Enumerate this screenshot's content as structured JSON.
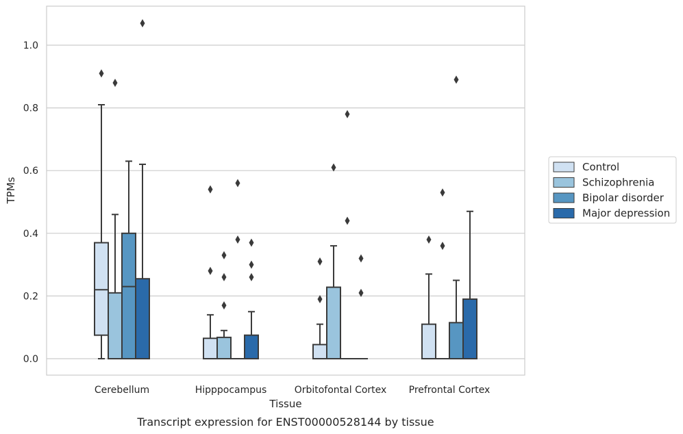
{
  "chart_data": {
    "type": "box",
    "xlabel": "Tissue",
    "ylabel": "TPMs",
    "caption": "Transcript expression for ENST00000528144 by tissue",
    "ylim": [
      -0.05,
      1.13
    ],
    "yticks": [
      0.0,
      0.2,
      0.4,
      0.6,
      0.8,
      1.0
    ],
    "ytick_labels": [
      "0.0",
      "0.2",
      "0.4",
      "0.6",
      "0.8",
      "1.0"
    ],
    "categories": [
      "Cerebellum",
      "Hipppocampus",
      "Orbitofontal Cortex",
      "Prefrontal Cortex"
    ],
    "grid": "horizontal",
    "legend_position": "right",
    "series": [
      {
        "name": "Control",
        "color": "#d0e1f2",
        "boxes": [
          {
            "q1": 0.075,
            "median": 0.22,
            "q3": 0.37,
            "whisker_low": 0.0,
            "whisker_high": 0.81,
            "outliers": [
              0.91
            ]
          },
          {
            "q1": 0.0,
            "median": 0.0,
            "q3": 0.065,
            "whisker_low": 0.0,
            "whisker_high": 0.14,
            "outliers": [
              0.28,
              0.54
            ]
          },
          {
            "q1": 0.0,
            "median": 0.0,
            "q3": 0.045,
            "whisker_low": 0.0,
            "whisker_high": 0.11,
            "outliers": [
              0.19,
              0.31
            ]
          },
          {
            "q1": 0.0,
            "median": 0.0,
            "q3": 0.11,
            "whisker_low": 0.0,
            "whisker_high": 0.27,
            "outliers": [
              0.38
            ]
          }
        ]
      },
      {
        "name": "Schizophrenia",
        "color": "#9ac4dd",
        "boxes": [
          {
            "q1": 0.0,
            "median": 0.0,
            "q3": 0.21,
            "whisker_low": 0.0,
            "whisker_high": 0.46,
            "outliers": [
              0.88
            ]
          },
          {
            "q1": 0.0,
            "median": 0.0,
            "q3": 0.068,
            "whisker_low": 0.0,
            "whisker_high": 0.09,
            "outliers": [
              0.17,
              0.26,
              0.33
            ]
          },
          {
            "q1": 0.0,
            "median": 0.0,
            "q3": 0.228,
            "whisker_low": 0.0,
            "whisker_high": 0.36,
            "outliers": [
              0.61
            ]
          },
          {
            "q1": 0.0,
            "median": 0.0,
            "q3": 0.0,
            "whisker_low": 0.0,
            "whisker_high": 0.0,
            "outliers": [
              0.36,
              0.53
            ]
          }
        ]
      },
      {
        "name": "Bipolar disorder",
        "color": "#5796c2",
        "boxes": [
          {
            "q1": 0.0,
            "median": 0.23,
            "q3": 0.4,
            "whisker_low": 0.0,
            "whisker_high": 0.63,
            "outliers": []
          },
          {
            "q1": 0.0,
            "median": 0.0,
            "q3": 0.0,
            "whisker_low": 0.0,
            "whisker_high": 0.0,
            "outliers": [
              0.38,
              0.56
            ]
          },
          {
            "q1": 0.0,
            "median": 0.0,
            "q3": 0.0,
            "whisker_low": 0.0,
            "whisker_high": 0.0,
            "outliers": [
              0.44,
              0.78
            ]
          },
          {
            "q1": 0.0,
            "median": 0.0,
            "q3": 0.115,
            "whisker_low": 0.0,
            "whisker_high": 0.25,
            "outliers": [
              0.89
            ]
          }
        ]
      },
      {
        "name": "Major depression",
        "color": "#2a6aaa",
        "boxes": [
          {
            "q1": 0.0,
            "median": 0.0,
            "q3": 0.255,
            "whisker_low": 0.0,
            "whisker_high": 0.62,
            "outliers": [
              1.07
            ]
          },
          {
            "q1": 0.0,
            "median": 0.0,
            "q3": 0.075,
            "whisker_low": 0.0,
            "whisker_high": 0.15,
            "outliers": [
              0.26,
              0.3,
              0.37
            ]
          },
          {
            "q1": 0.0,
            "median": 0.0,
            "q3": 0.0,
            "whisker_low": 0.0,
            "whisker_high": 0.0,
            "outliers": [
              0.21,
              0.32
            ]
          },
          {
            "q1": 0.0,
            "median": 0.0,
            "q3": 0.19,
            "whisker_low": 0.0,
            "whisker_high": 0.47,
            "outliers": []
          }
        ]
      }
    ]
  }
}
